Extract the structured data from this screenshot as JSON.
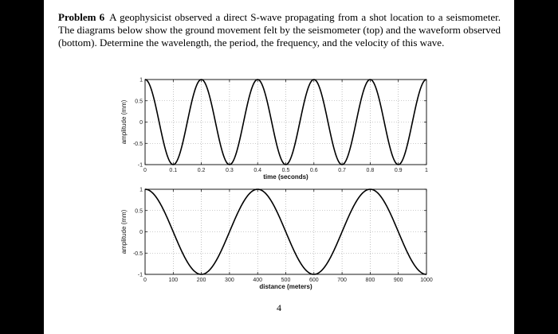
{
  "problem": {
    "label": "Problem 6",
    "text": "A geophysicist observed a direct S-wave propagating from a shot location to a seismometer. The diagrams below show the ground movement felt by the seismometer (top) and the waveform observed (bottom). Determine the wavelength, the period, the frequency, and the velocity of this wave."
  },
  "page_number": "4",
  "chart_data": [
    {
      "type": "line",
      "xlabel": "time (seconds)",
      "ylabel": "amplitude (mm)",
      "xlim": [
        0,
        1
      ],
      "ylim": [
        -1,
        1
      ],
      "xticks": [
        "0",
        "0.1",
        "0.2",
        "0.3",
        "0.4",
        "0.5",
        "0.6",
        "0.7",
        "0.8",
        "0.9",
        "1"
      ],
      "xtick_values": [
        0,
        0.1,
        0.2,
        0.3,
        0.4,
        0.5,
        0.6,
        0.7,
        0.8,
        0.9,
        1
      ],
      "yticks": [
        "1",
        "0.5",
        "0",
        "-0.5",
        "-1"
      ],
      "ytick_values": [
        1,
        0.5,
        0,
        -0.5,
        -1
      ],
      "grid": true,
      "series": [
        {
          "function": "cos(2*pi*x/period)",
          "amplitude": 1,
          "period": 0.2,
          "color": "#000000"
        }
      ]
    },
    {
      "type": "line",
      "xlabel": "distance (meters)",
      "ylabel": "amplitude (mm)",
      "xlim": [
        0,
        1000
      ],
      "ylim": [
        -1,
        1
      ],
      "xticks": [
        "0",
        "100",
        "200",
        "300",
        "400",
        "500",
        "600",
        "700",
        "800",
        "900",
        "1000"
      ],
      "xtick_values": [
        0,
        100,
        200,
        300,
        400,
        500,
        600,
        700,
        800,
        900,
        1000
      ],
      "yticks": [
        "1",
        "0.5",
        "0",
        "-0.5",
        "-1"
      ],
      "ytick_values": [
        1,
        0.5,
        0,
        -0.5,
        -1
      ],
      "grid": true,
      "series": [
        {
          "function": "cos(2*pi*x/wavelength)",
          "amplitude": 1,
          "wavelength": 400,
          "color": "#000000"
        }
      ]
    }
  ]
}
